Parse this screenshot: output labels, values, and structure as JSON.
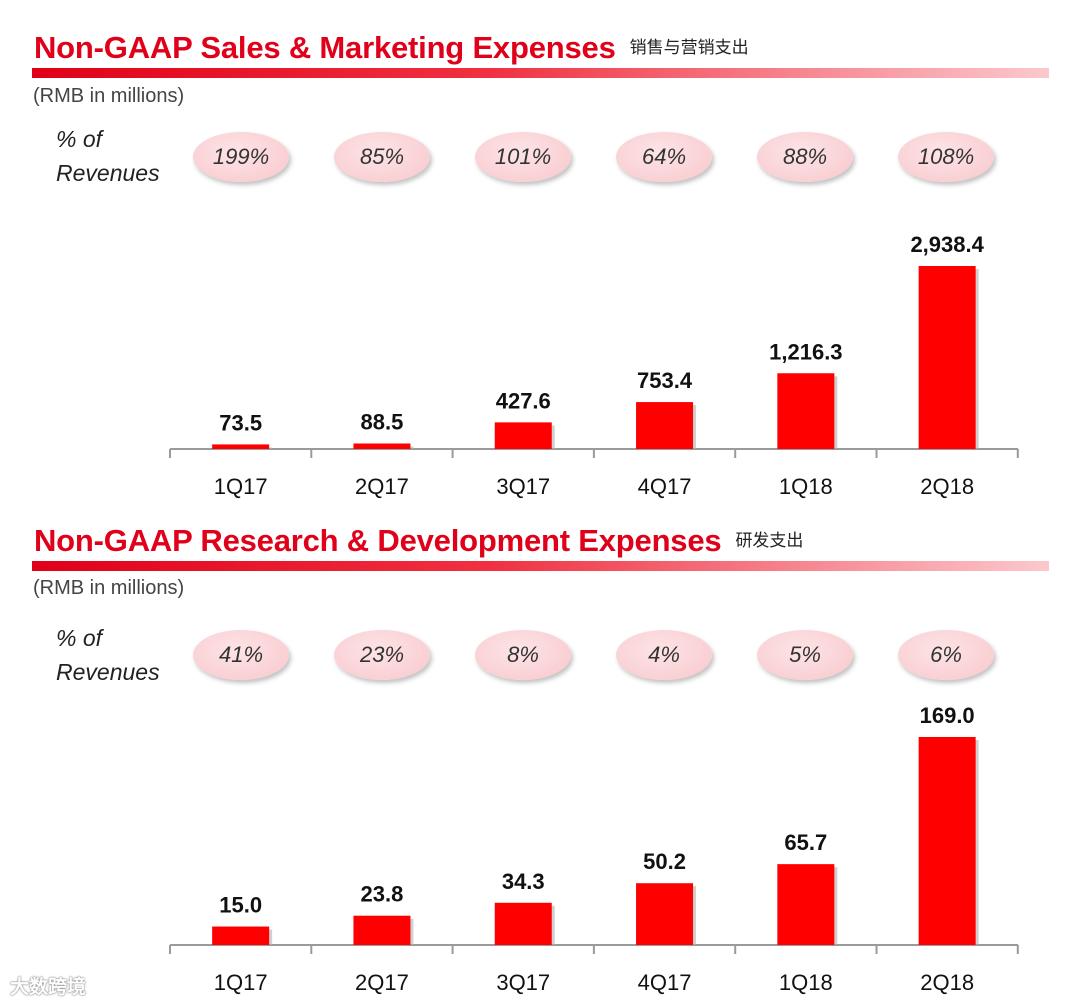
{
  "watermark": "大数跨境",
  "chart_data": [
    {
      "type": "bar",
      "title": "Non-GAAP Sales & Marketing Expenses",
      "title_cn": "销售与营销支出",
      "units": "(RMB in millions)",
      "pct_label_line1": "% of",
      "pct_label_line2": "Revenues",
      "categories": [
        "1Q17",
        "2Q17",
        "3Q17",
        "4Q17",
        "1Q18",
        "2Q18"
      ],
      "values": [
        73.5,
        88.5,
        427.6,
        753.4,
        1216.3,
        2938.4
      ],
      "value_labels": [
        "73.5",
        "88.5",
        "427.6",
        "753.4",
        "1,216.3",
        "2,938.4"
      ],
      "pct_of_revenues": [
        "199%",
        "85%",
        "101%",
        "64%",
        "88%",
        "108%"
      ],
      "ylim": [
        0,
        2938.4
      ],
      "bar_color": "#ff0000",
      "grid": false
    },
    {
      "type": "bar",
      "title": "Non-GAAP Research & Development Expenses",
      "title_cn": "研发支出",
      "units": "(RMB in millions)",
      "pct_label_line1": "% of",
      "pct_label_line2": "Revenues",
      "categories": [
        "1Q17",
        "2Q17",
        "3Q17",
        "4Q17",
        "1Q18",
        "2Q18"
      ],
      "values": [
        15.0,
        23.8,
        34.3,
        50.2,
        65.7,
        169.0
      ],
      "value_labels": [
        "15.0",
        "23.8",
        "34.3",
        "50.2",
        "65.7",
        "169.0"
      ],
      "pct_of_revenues": [
        "41%",
        "23%",
        "8%",
        "4%",
        "5%",
        "6%"
      ],
      "ylim": [
        0,
        169.0
      ],
      "bar_color": "#ff0000",
      "grid": false
    }
  ]
}
